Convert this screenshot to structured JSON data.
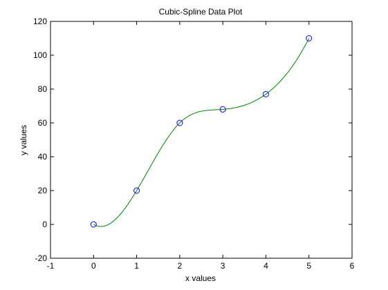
{
  "chart_data": {
    "type": "line",
    "title": "Cubic-Spline Data Plot",
    "xlabel": "x values",
    "ylabel": "y values",
    "xlim": [
      -1,
      6
    ],
    "ylim": [
      -20,
      120
    ],
    "xticks": [
      -1,
      0,
      1,
      2,
      3,
      4,
      5,
      6
    ],
    "yticks": [
      -20,
      0,
      20,
      40,
      60,
      80,
      100,
      120
    ],
    "grid": false,
    "series": [
      {
        "type": "scatter",
        "marker": "circle-open",
        "color": "#0000ff",
        "x": [
          0,
          1,
          2,
          3,
          4,
          5
        ],
        "y": [
          0,
          20,
          60,
          68,
          77,
          110
        ]
      },
      {
        "type": "line",
        "color": "#008000",
        "x": [
          0,
          1,
          2,
          3,
          4,
          5
        ],
        "y": [
          0,
          20,
          60,
          68,
          77,
          110
        ]
      }
    ]
  }
}
